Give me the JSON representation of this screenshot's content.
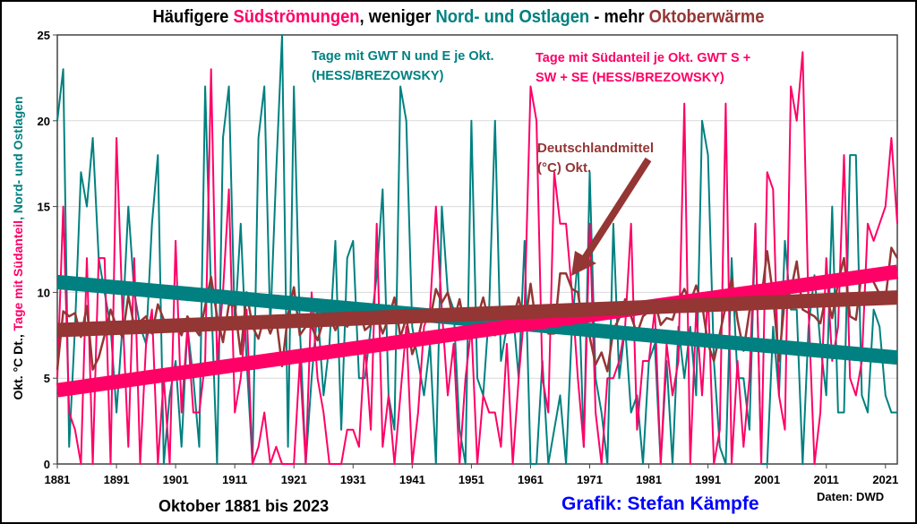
{
  "colors": {
    "north_east": "#008080",
    "south": "#ff0066",
    "temp": "#943634",
    "grid": "#d9d9d9"
  },
  "title": {
    "p1": "Häufigere ",
    "p2": "Südströmungen",
    ",": ",",
    "p3": " weniger ",
    "p4": "Nord- und Ostlagen",
    "p5": " - mehr ",
    "p6": "Oktoberwärme"
  },
  "ylabel": {
    "p1": "Okt. °C Dt., ",
    "p2": "Tage mit Südanteil",
    "p3": ", Nord- und Ostlagen"
  },
  "annotations": {
    "north_east_1": "Tage mit GWT N und E je Okt.",
    "north_east_2": "(HESS/BREZOWSKY)",
    "south_1": "Tage mit Südanteil je Okt. GWT S +",
    "south_2": "SW + SE (HESS/BREZOWSKY)",
    "temp_1": "Deutschlandmittel",
    "temp_2": "(°C) Okt."
  },
  "xlabel": "Oktober 1881 bis 2023",
  "credit": "Grafik: Stefan Kämpfe",
  "source": "Daten: DWD",
  "chart_data": {
    "type": "line",
    "title": "Häufigere Südströmungen, weniger Nord- und Ostlagen - mehr Oktoberwärme",
    "xlabel": "Oktober 1881 bis 2023",
    "ylabel": "Okt. °C Dt., Tage mit Südanteil, Nord- und Ostlagen",
    "x_start": 1881,
    "x_end": 2023,
    "xlim": [
      1881,
      2023
    ],
    "ylim": [
      0,
      25
    ],
    "x_ticks": [
      "1881",
      "1891",
      "1901",
      "1911",
      "1921",
      "1931",
      "1941",
      "1951",
      "1961",
      "1971",
      "1981",
      "1991",
      "2001",
      "2011",
      "2021"
    ],
    "y_ticks": [
      "0",
      "5",
      "10",
      "15",
      "20",
      "25"
    ],
    "grid": "horizontal",
    "series": [
      {
        "name": "Tage mit GWT N und E je Okt. (HESS/BREZOWSKY)",
        "key": "north_east",
        "values": [
          20,
          23,
          1,
          8,
          17,
          15,
          19,
          12,
          10,
          8,
          3,
          8,
          15,
          10,
          8,
          7,
          14,
          18,
          0,
          4,
          6,
          1,
          8,
          5,
          1,
          22,
          10,
          0,
          19,
          22,
          8,
          14,
          6,
          0,
          19,
          22,
          8,
          17,
          25,
          1,
          22,
          8,
          0,
          5,
          9,
          4,
          7,
          13,
          2,
          12,
          13,
          5,
          5,
          8,
          11,
          16,
          4,
          2,
          22,
          20,
          8,
          6,
          4,
          7,
          0,
          15,
          10,
          9,
          2,
          0,
          20,
          5,
          4,
          9,
          20,
          6,
          8,
          9,
          5,
          13,
          0,
          0,
          6,
          0,
          2,
          4,
          0,
          8,
          12,
          1,
          17,
          5,
          3,
          0,
          14,
          5,
          8,
          3,
          4,
          0,
          6,
          7,
          0,
          6,
          0,
          8,
          5,
          8,
          4,
          20,
          18,
          6,
          1,
          0,
          12,
          5,
          5,
          2,
          14,
          0,
          0,
          8,
          4,
          13,
          9,
          9,
          0,
          8,
          11,
          7,
          4,
          15,
          3,
          3,
          18,
          18,
          4,
          3,
          9,
          8,
          4,
          3,
          3
        ],
        "trend": [
          10.6,
          6.2
        ]
      },
      {
        "name": "Tage mit Südanteil je Okt. GWT S + SW + SE (HESS/BREZOWSKY)",
        "key": "south",
        "values": [
          5,
          15,
          3,
          2,
          0,
          12,
          0,
          12,
          12,
          0,
          19,
          9,
          1,
          12,
          0,
          7,
          9,
          0,
          5,
          0,
          13,
          3,
          8,
          3,
          3,
          6,
          23,
          6,
          10,
          16,
          3,
          5,
          9,
          0,
          1,
          3,
          0,
          1,
          0,
          0,
          0,
          6,
          0,
          10,
          5,
          3,
          0,
          0,
          0,
          2,
          2,
          1,
          7,
          2,
          14,
          1,
          4,
          0,
          4,
          8,
          0,
          3,
          8,
          9,
          15,
          9,
          4,
          7,
          0,
          5,
          8,
          0,
          4,
          3,
          3,
          1,
          7,
          0,
          5,
          9,
          22,
          20,
          5,
          3,
          17,
          14,
          14,
          10,
          5,
          1,
          14,
          3,
          0,
          5,
          5,
          6,
          8,
          14,
          2,
          6,
          6,
          9,
          0,
          7,
          4,
          6,
          21,
          0,
          9,
          4,
          10,
          0,
          2,
          21,
          0,
          6,
          1,
          5,
          14,
          0,
          17,
          16,
          4,
          2,
          22,
          20,
          24,
          9,
          0,
          3,
          12,
          6,
          8,
          18,
          5,
          4,
          6,
          14,
          13,
          14,
          15,
          19,
          14
        ],
        "trend": [
          4.3,
          11.2
        ]
      },
      {
        "name": "Deutschlandmittel (°C) Okt.",
        "key": "temp",
        "values": [
          5.5,
          8.9,
          8.6,
          8.8,
          7.4,
          9.2,
          5.5,
          6.2,
          7.5,
          9.0,
          8.0,
          7.4,
          9.8,
          8.0,
          8.3,
          8.6,
          7.6,
          9.3,
          8.4,
          8.2,
          8.2,
          7.5,
          8.6,
          8.0,
          7.5,
          9.2,
          10.9,
          8.6,
          7.1,
          9.3,
          9.2,
          6.4,
          10.0,
          8.0,
          7.3,
          8.6,
          7.6,
          8.5,
          5.7,
          8.7,
          10.3,
          7.5,
          8.0,
          8.0,
          7.2,
          8.4,
          8.6,
          7.8,
          8.6,
          8.0,
          8.5,
          9.1,
          7.8,
          8.1,
          8.7,
          7.6,
          8.5,
          9.7,
          7.4,
          8.5,
          6.4,
          7.3,
          8.9,
          8.4,
          10.2,
          9.4,
          10.0,
          8.3,
          9.6,
          7.7,
          7.5,
          8.5,
          9.7,
          8.2,
          7.5,
          8.0,
          9.0,
          8.4,
          9.7,
          8.0,
          10.5,
          8.0,
          8.6,
          7.6,
          7.6,
          11.1,
          11.1,
          10.2,
          10.0,
          7.8,
          7.4,
          5.8,
          6.5,
          5.4,
          7.8,
          8.5,
          9.6,
          8.6,
          7.6,
          8.6,
          8.9,
          9.5,
          8.1,
          8.5,
          8.4,
          9.5,
          10.2,
          9.4,
          10.4,
          9.3,
          7.0,
          6.0,
          7.6,
          9.2,
          10.8,
          8.4,
          6.6,
          8.9,
          9.6,
          9.6,
          12.4,
          9.8,
          6.0,
          9.7,
          10.1,
          11.8,
          9.0,
          8.8,
          8.6,
          8.2,
          9.9,
          8.5,
          10.6,
          12.0,
          8.6,
          8.4,
          11.2,
          10.8,
          10.6,
          9.9,
          9.6,
          12.6,
          12.0
        ],
        "trend": [
          7.8,
          9.7
        ]
      }
    ]
  }
}
